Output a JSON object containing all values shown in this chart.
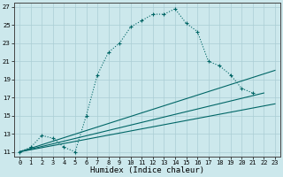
{
  "xlabel": "Humidex (Indice chaleur)",
  "xlim": [
    -0.5,
    23.5
  ],
  "ylim": [
    10.5,
    27.5
  ],
  "xticks": [
    0,
    1,
    2,
    3,
    4,
    5,
    6,
    7,
    8,
    9,
    10,
    11,
    12,
    13,
    14,
    15,
    16,
    17,
    18,
    19,
    20,
    21,
    22,
    23
  ],
  "yticks": [
    11,
    13,
    15,
    17,
    19,
    21,
    23,
    25,
    27
  ],
  "bg_color": "#cce8ec",
  "line_color": "#006666",
  "grid_color": "#aacdd4",
  "main_x": [
    0,
    1,
    2,
    3,
    4,
    5,
    6,
    7,
    8,
    9,
    10,
    11,
    12,
    13,
    14,
    15,
    16,
    17,
    18,
    19,
    20,
    21
  ],
  "main_y": [
    11,
    11.5,
    12.8,
    12.5,
    11.5,
    11.0,
    15.0,
    19.5,
    22.0,
    23.0,
    24.8,
    25.5,
    26.2,
    26.2,
    26.8,
    25.2,
    24.3,
    21.0,
    20.5,
    19.5,
    18.0,
    17.5
  ],
  "line2_x": [
    0,
    23
  ],
  "line2_y": [
    11,
    20.0
  ],
  "line3_x": [
    0,
    23
  ],
  "line3_y": [
    11,
    16.3
  ],
  "line4_x": [
    0,
    22
  ],
  "line4_y": [
    11,
    17.5
  ],
  "tick_fontsize": 5.0,
  "xlabel_fontsize": 6.5
}
